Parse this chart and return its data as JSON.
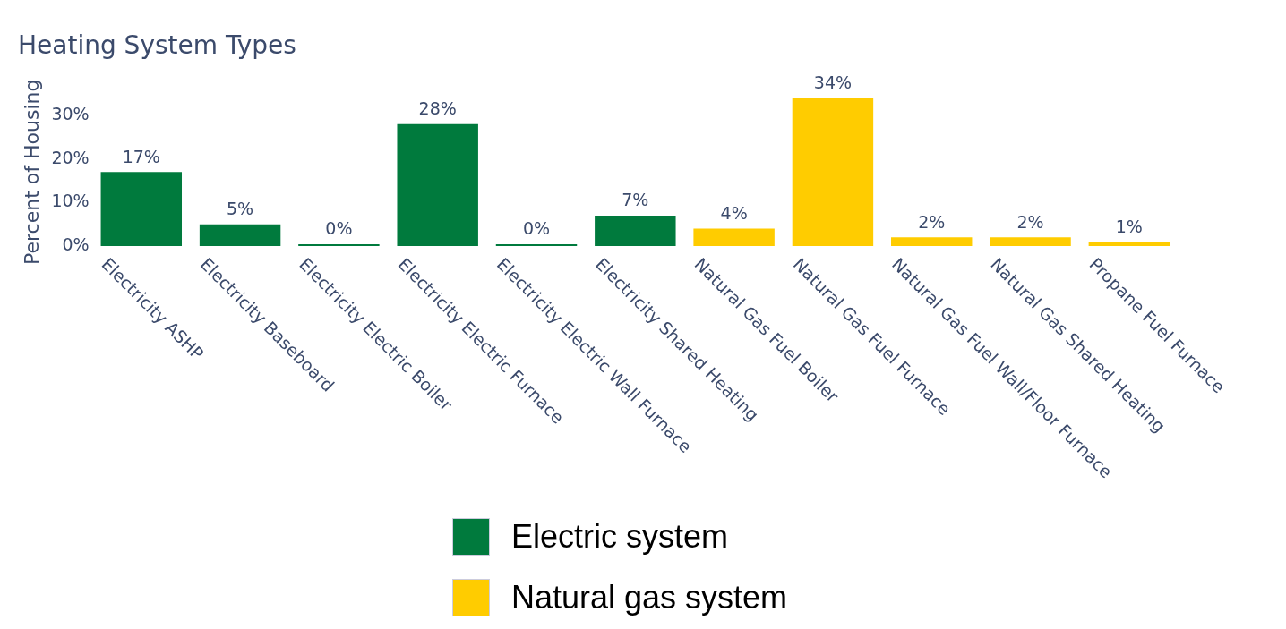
{
  "chart_data": {
    "type": "bar",
    "title": "Heating System Types",
    "ylabel": "Percent of Housing",
    "categories": [
      "Electricity ASHP",
      "Electricity Baseboard",
      "Electricity Electric Boiler",
      "Electricity Electric Furnace",
      "Electricity Electric Wall Furnace",
      "Electricity Shared Heating",
      "Natural Gas Fuel Boiler",
      "Natural Gas Fuel Furnace",
      "Natural Gas Fuel Wall/Floor Furnace",
      "Natural Gas Shared Heating",
      "Propane Fuel Furnace"
    ],
    "stacked": true,
    "series": [
      {
        "name": "Electric system",
        "color": "#007a3d",
        "values": [
          17,
          5,
          0.4,
          28,
          0.4,
          7,
          null,
          null,
          null,
          null,
          null
        ],
        "value_labels": [
          "17%",
          "5%",
          "0%",
          "28%",
          "0%",
          "7%",
          null,
          null,
          null,
          null,
          null
        ]
      },
      {
        "name": "Natural gas system",
        "color": "#ffcc00",
        "values": [
          null,
          null,
          null,
          null,
          null,
          null,
          4,
          34,
          2,
          2,
          1
        ],
        "value_labels": [
          null,
          null,
          null,
          null,
          null,
          null,
          "4%",
          "34%",
          "2%",
          "2%",
          "1%"
        ]
      }
    ],
    "ylim": [
      0,
      34
    ],
    "yticks": [
      {
        "value": 0,
        "label": "0%"
      },
      {
        "value": 10,
        "label": "10%"
      },
      {
        "value": 20,
        "label": "20%"
      },
      {
        "value": 30,
        "label": "30%"
      }
    ],
    "grid": false,
    "legend": "bottom"
  }
}
